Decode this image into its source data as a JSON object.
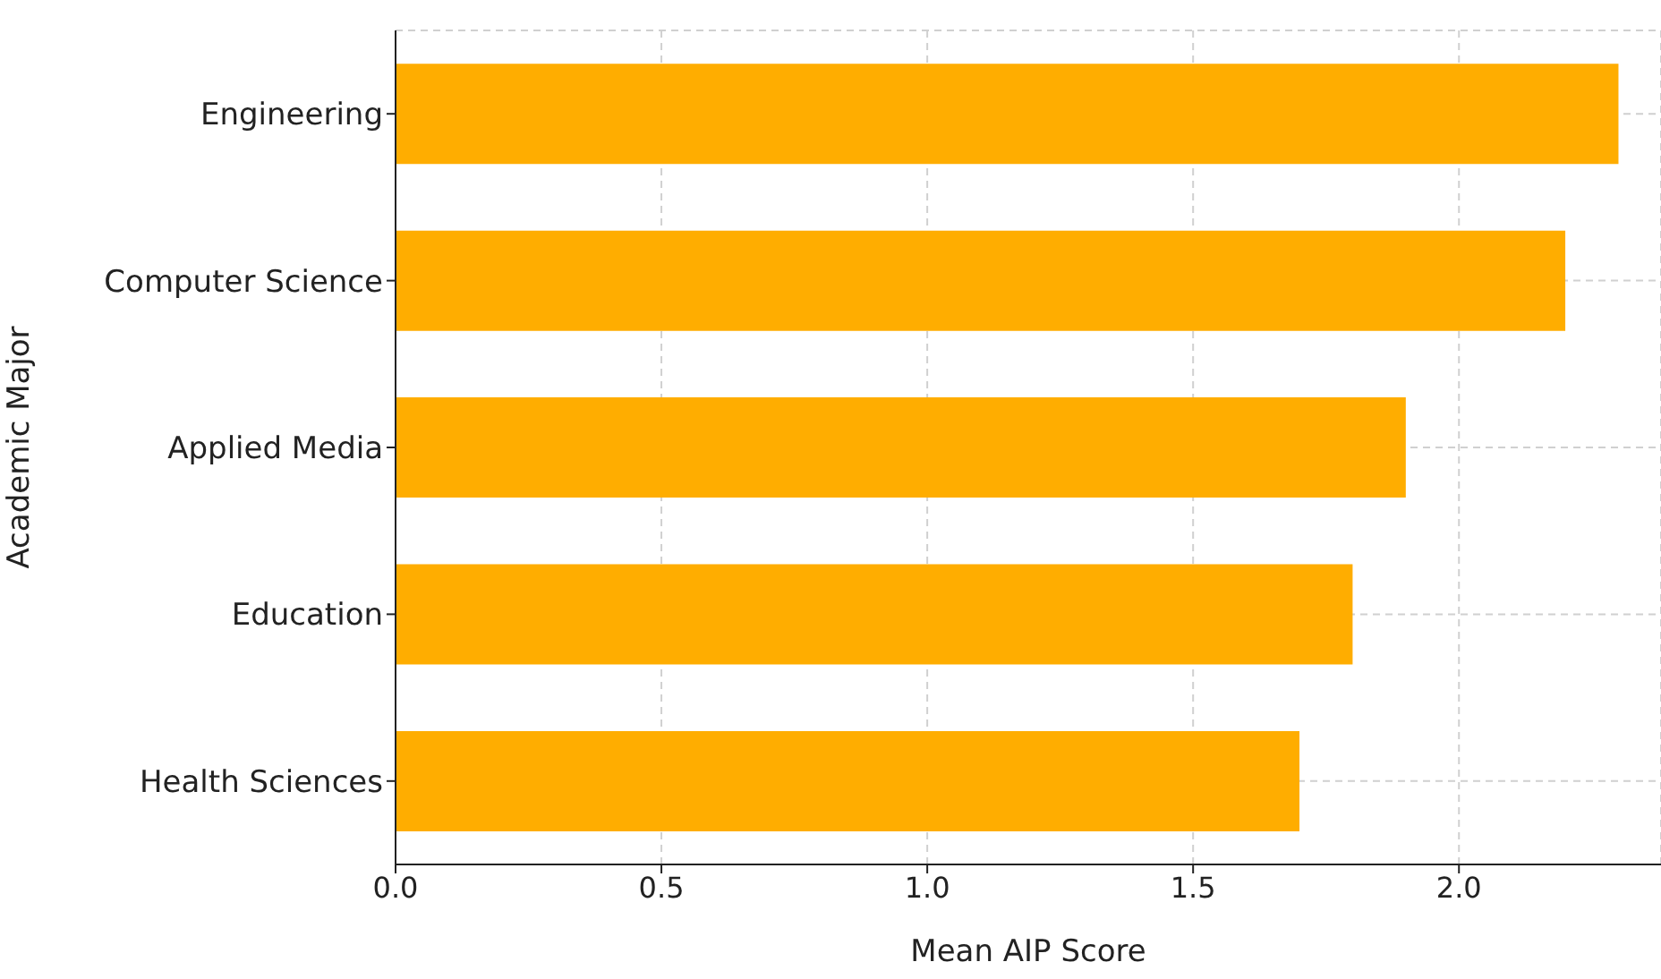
{
  "chart_data": {
    "type": "bar",
    "orientation": "horizontal",
    "xlabel": "Mean AIP Score",
    "ylabel": "Academic Major",
    "categories": [
      "Engineering",
      "Computer Science",
      "Applied Media",
      "Education",
      "Health Sciences"
    ],
    "values": [
      2.3,
      2.2,
      1.9,
      1.8,
      1.7
    ],
    "color": "#ffad00",
    "xlim": [
      0,
      2.38
    ],
    "xticks": [
      {
        "value": 0,
        "label": "0.0"
      },
      {
        "value": 0.5,
        "label": "0.5"
      },
      {
        "value": 1,
        "label": "1.0"
      },
      {
        "value": 1.5,
        "label": "1.5"
      },
      {
        "value": 2,
        "label": "2.0"
      }
    ],
    "grid": true
  }
}
